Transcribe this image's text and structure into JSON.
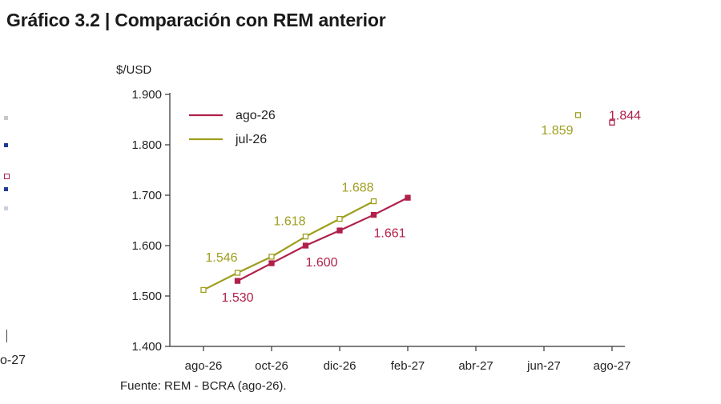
{
  "title": "Gráfico 3.2 | Comparación con REM anterior",
  "source_note": "Fuente: REM - BCRA (ago-26).",
  "left_panel_fragment": {
    "xtick": "o-27",
    "marker_colors": [
      "#c8c8c8",
      "#1f3a93",
      "#b0204a",
      "#1f3a93",
      "#c8d0e0"
    ]
  },
  "chart_data": {
    "type": "line",
    "ylabel": "$/USD",
    "ylim": [
      1400,
      1900
    ],
    "yticks": [
      1400,
      1500,
      1600,
      1700,
      1800,
      1900
    ],
    "ytick_labels": [
      "1.400",
      "1.500",
      "1.600",
      "1.700",
      "1.800",
      "1.900"
    ],
    "xticks": [
      "ago-26",
      "oct-26",
      "dic-26",
      "feb-27",
      "abr-27",
      "jun-27",
      "ago-27"
    ],
    "xlim": [
      "2026-07-01",
      "2027-08-01"
    ],
    "legend_position": "top-left",
    "series": [
      {
        "name": "ago-26",
        "color": "#b0204a",
        "points": [
          {
            "x": "2026-09",
            "y": 1530,
            "label": "1.530"
          },
          {
            "x": "2026-10",
            "y": 1565
          },
          {
            "x": "2026-11",
            "y": 1600,
            "label": "1.600"
          },
          {
            "x": "2026-12",
            "y": 1630
          },
          {
            "x": "2027-01",
            "y": 1661,
            "label": "1.661"
          },
          {
            "x": "2027-02",
            "y": 1695
          }
        ],
        "isolated": [
          {
            "x": "2027-08",
            "y": 1844,
            "label": "1.844"
          }
        ]
      },
      {
        "name": "jul-26",
        "color": "#9e9e1e",
        "points": [
          {
            "x": "2026-08",
            "y": 1512
          },
          {
            "x": "2026-09",
            "y": 1546,
            "label": "1.546"
          },
          {
            "x": "2026-10",
            "y": 1578
          },
          {
            "x": "2026-11",
            "y": 1618,
            "label": "1.618"
          },
          {
            "x": "2026-12",
            "y": 1653
          },
          {
            "x": "2027-01",
            "y": 1688,
            "label": "1.688"
          }
        ],
        "isolated": [
          {
            "x": "2027-07",
            "y": 1859,
            "label": "1.859"
          }
        ]
      }
    ]
  }
}
